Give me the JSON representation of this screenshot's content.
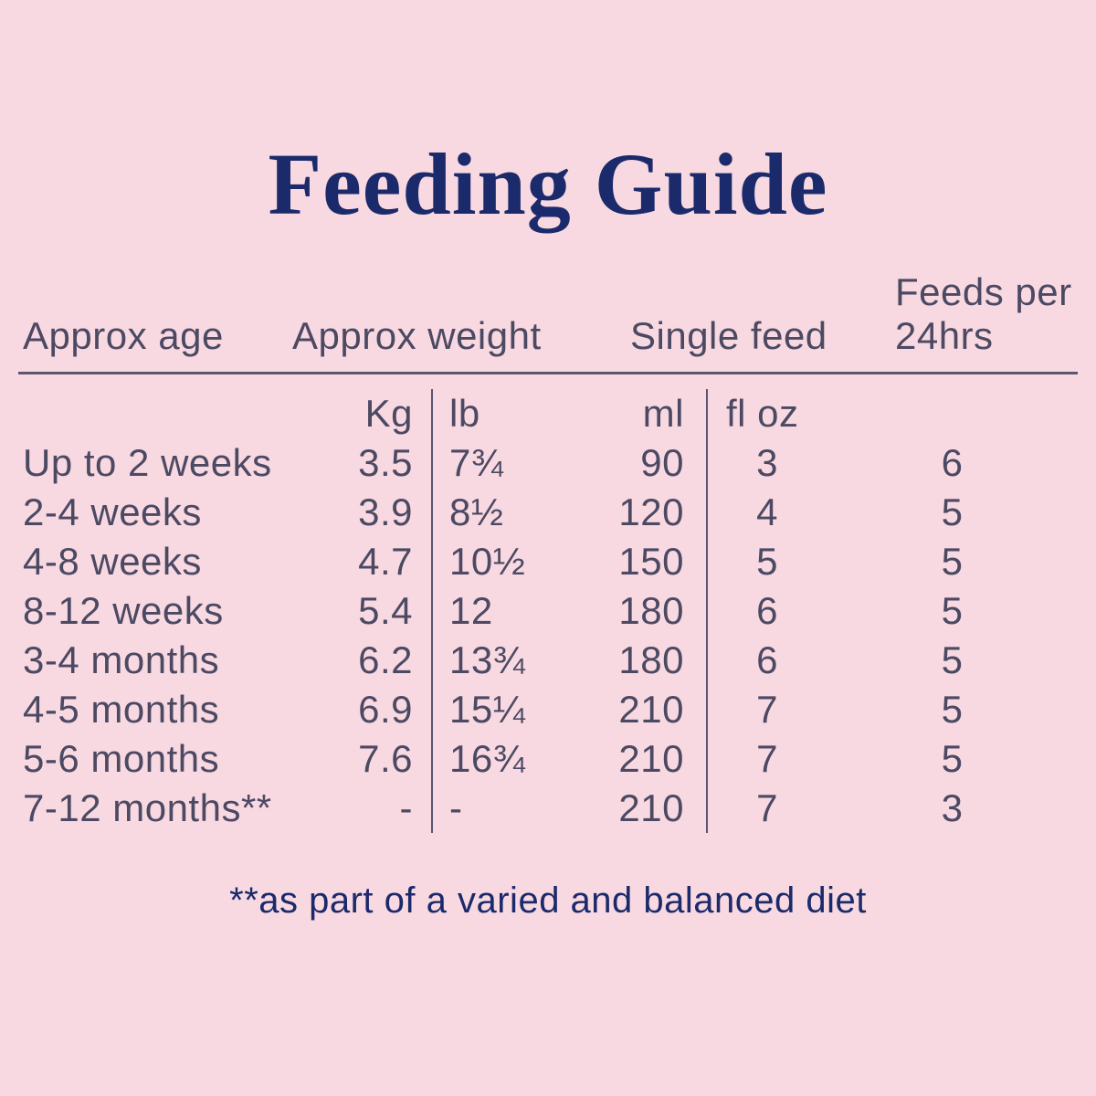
{
  "colors": {
    "background": "#f8d9e1",
    "title_text": "#1b2a6b",
    "table_text": "#4c4963",
    "line": "#5a5670"
  },
  "title": "Feeding Guide",
  "table": {
    "header": {
      "age": "Approx age",
      "weight": "Approx weight",
      "single_feed": "Single feed",
      "feeds_line1": "Feeds per",
      "feeds_line2": "24hrs"
    },
    "units": {
      "kg": "Kg",
      "lb": "lb",
      "ml": "ml",
      "floz": "fl oz"
    },
    "rows": [
      {
        "age": "Up to 2 weeks",
        "kg": "3.5",
        "lb": "7¾",
        "ml": "90",
        "floz": "3",
        "feeds": "6"
      },
      {
        "age": "2-4 weeks",
        "kg": "3.9",
        "lb": "8½",
        "ml": "120",
        "floz": "4",
        "feeds": "5"
      },
      {
        "age": "4-8 weeks",
        "kg": "4.7",
        "lb": "10½",
        "ml": "150",
        "floz": "5",
        "feeds": "5"
      },
      {
        "age": "8-12 weeks",
        "kg": "5.4",
        "lb": "12",
        "ml": "180",
        "floz": "6",
        "feeds": "5"
      },
      {
        "age": "3-4 months",
        "kg": "6.2",
        "lb": "13¾",
        "ml": "180",
        "floz": "6",
        "feeds": "5"
      },
      {
        "age": "4-5 months",
        "kg": "6.9",
        "lb": "15¼",
        "ml": "210",
        "floz": "7",
        "feeds": "5"
      },
      {
        "age": "5-6 months",
        "kg": "7.6",
        "lb": "16¾",
        "ml": "210",
        "floz": "7",
        "feeds": "5"
      },
      {
        "age": "7-12 months**",
        "kg": "-",
        "lb": "-",
        "ml": "210",
        "floz": "7",
        "feeds": "3"
      }
    ]
  },
  "footnote": "**as part of a varied and balanced diet",
  "chart_data": {
    "type": "table",
    "title": "Feeding Guide",
    "columns": [
      "Approx age",
      "Approx weight (Kg)",
      "Approx weight (lb)",
      "Single feed (ml)",
      "Single feed (fl oz)",
      "Feeds per 24hrs"
    ],
    "rows": [
      [
        "Up to 2 weeks",
        "3.5",
        "7¾",
        "90",
        "3",
        "6"
      ],
      [
        "2-4 weeks",
        "3.9",
        "8½",
        "120",
        "4",
        "5"
      ],
      [
        "4-8 weeks",
        "4.7",
        "10½",
        "150",
        "5",
        "5"
      ],
      [
        "8-12 weeks",
        "5.4",
        "12",
        "180",
        "6",
        "5"
      ],
      [
        "3-4 months",
        "6.2",
        "13¾",
        "180",
        "6",
        "5"
      ],
      [
        "4-5 months",
        "6.9",
        "15¼",
        "210",
        "7",
        "5"
      ],
      [
        "5-6 months",
        "7.6",
        "16¾",
        "210",
        "7",
        "5"
      ],
      [
        "7-12 months**",
        "-",
        "-",
        "210",
        "7",
        "3"
      ]
    ],
    "annotations": [
      "**as part of a varied and balanced diet"
    ]
  }
}
